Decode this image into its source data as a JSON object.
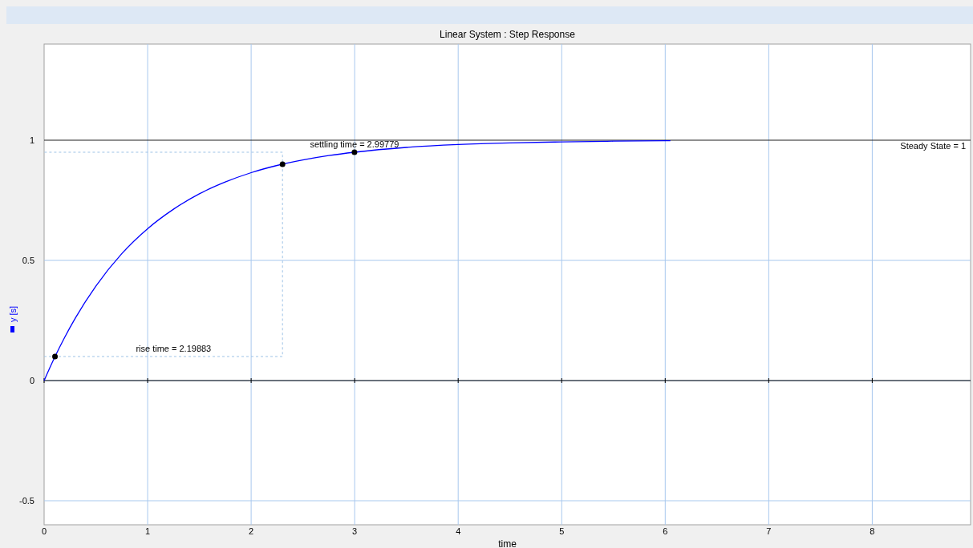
{
  "chart_data": {
    "type": "line",
    "title": "Linear System : Step Response",
    "xlabel": "time",
    "xlim": [
      0,
      8.95
    ],
    "xticks": [
      0,
      1,
      2,
      3,
      4,
      5,
      6,
      7,
      8
    ],
    "ylim": [
      -0.6,
      1.4
    ],
    "yticks": [
      -0.5,
      0,
      0.5,
      1
    ],
    "grid": true,
    "legend": "left",
    "series": [
      {
        "name": "y [s]",
        "color": "#0000ff",
        "x": [
          0,
          0.1,
          0.2,
          0.3,
          0.5,
          0.75,
          1,
          1.25,
          1.5,
          1.75,
          2,
          2.25,
          2.5,
          2.75,
          3,
          3.5,
          4,
          4.5,
          5,
          5.5,
          6.05
        ],
        "values": [
          0,
          0.095,
          0.181,
          0.259,
          0.393,
          0.528,
          0.632,
          0.713,
          0.777,
          0.826,
          0.865,
          0.895,
          0.918,
          0.936,
          0.95,
          0.97,
          0.982,
          0.989,
          0.993,
          0.996,
          0.998
        ]
      },
      {
        "type": "line",
        "color": "#9ec3e6",
        "line_style": "dashed",
        "marker": "none",
        "x": [
          0,
          2.303,
          2.303,
          0
        ],
        "values": [
          0.1,
          0.1,
          0.95,
          0.95
        ]
      },
      {
        "type": "scatter",
        "color": "#000000",
        "marker": "circle",
        "x": [
          0.105,
          2.303,
          2.998
        ],
        "values": [
          0.1,
          0.9,
          0.95
        ]
      }
    ],
    "ref_lines": [
      {
        "axis": "y",
        "value": 1,
        "label": "Steady State = 1",
        "color": "#202020"
      }
    ],
    "annotations": [
      {
        "text": "rise time = 2.19883",
        "x": 1.25,
        "y": 0.1
      },
      {
        "text": "settling time = 2.99779",
        "x": 2.998,
        "y": 0.95
      }
    ]
  }
}
